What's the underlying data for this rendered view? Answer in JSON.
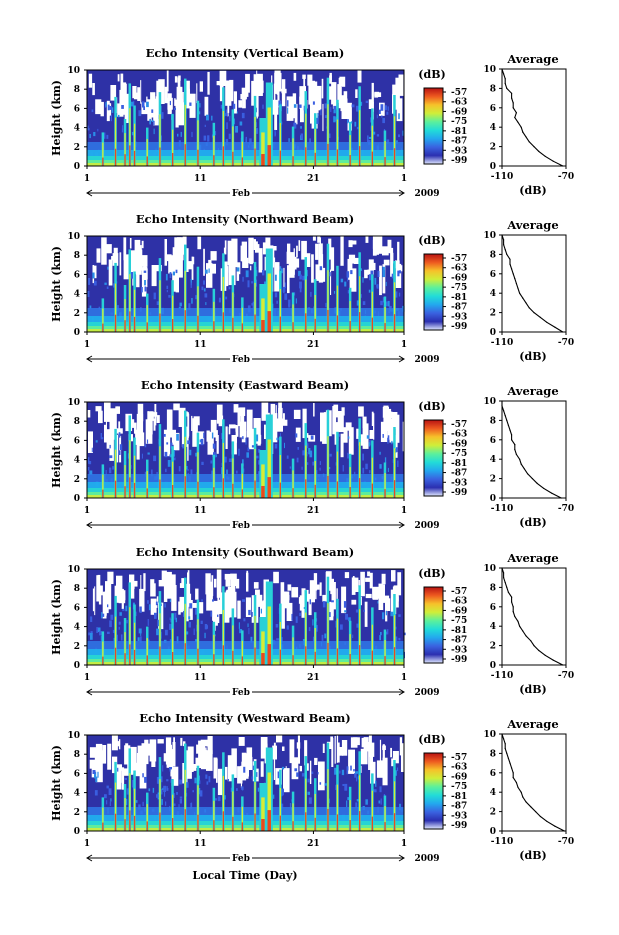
{
  "figure": {
    "xlabel": "Local Time (Day)"
  },
  "colorbar": {
    "unit": "(dB)",
    "ticks": [
      "-57",
      "-63",
      "-69",
      "-75",
      "-81",
      "-87",
      "-93",
      "-99"
    ],
    "colors": [
      "#e0e8ff",
      "#2b2fb0",
      "#3a62e0",
      "#23a8ee",
      "#22dcd8",
      "#5cf09c",
      "#cfee3a",
      "#f6c22a",
      "#ee5a20",
      "#b81212"
    ]
  },
  "chart_data": [
    {
      "type": "heatmap",
      "title": "Echo Intensity (Vertical Beam)",
      "ylabel": "Height (km)",
      "ylim": [
        0,
        10
      ],
      "yticks": [
        "0",
        "2",
        "4",
        "6",
        "8",
        "10"
      ],
      "xticks": [
        "1",
        "11",
        "21",
        "1"
      ],
      "month_label": "Feb",
      "year_label": "2009",
      "colorbar_label": "(dB)",
      "colorbar_range": [
        -99,
        -57
      ],
      "average_profile": {
        "title": "Average",
        "xlabel": "(dB)",
        "xticks": [
          "-110",
          "-70"
        ],
        "xlim": [
          -110,
          -70
        ],
        "heights": [
          0.0,
          0.5,
          1.0,
          1.5,
          2.0,
          2.5,
          3.0,
          3.5,
          4.0,
          4.5,
          5.0,
          5.5,
          6.0,
          6.5,
          7.0,
          7.5,
          8.0,
          8.5,
          9.0,
          9.5,
          10.0
        ],
        "values": [
          -72,
          -78,
          -83,
          -87,
          -90,
          -93,
          -95,
          -97,
          -98,
          -100,
          -102,
          -101,
          -103,
          -103,
          -104,
          -104,
          -107,
          -108,
          -108,
          -109,
          -110
        ]
      }
    },
    {
      "type": "heatmap",
      "title": "Echo Intensity (Northward Beam)",
      "ylabel": "Height (km)",
      "ylim": [
        0,
        10
      ],
      "yticks": [
        "0",
        "2",
        "4",
        "6",
        "8",
        "10"
      ],
      "xticks": [
        "1",
        "11",
        "21",
        "1"
      ],
      "month_label": "Feb",
      "year_label": "2009",
      "colorbar_label": "(dB)",
      "colorbar_range": [
        -99,
        -57
      ],
      "average_profile": {
        "title": "Average",
        "xlabel": "(dB)",
        "xticks": [
          "-110",
          "-70"
        ],
        "xlim": [
          -110,
          -70
        ],
        "heights": [
          0.0,
          0.5,
          1.0,
          1.5,
          2.0,
          2.5,
          3.0,
          3.5,
          4.0,
          4.5,
          5.0,
          5.5,
          6.0,
          6.5,
          7.0,
          7.5,
          8.0,
          8.5,
          9.0,
          9.5,
          10.0
        ],
        "values": [
          -72,
          -77,
          -82,
          -86,
          -90,
          -93,
          -95,
          -97,
          -99,
          -100,
          -101,
          -102,
          -103,
          -104,
          -105,
          -105,
          -107,
          -108,
          -109,
          -109,
          -110
        ]
      }
    },
    {
      "type": "heatmap",
      "title": "Echo Intensity (Eastward Beam)",
      "ylabel": "Height (km)",
      "ylim": [
        0,
        10
      ],
      "yticks": [
        "0",
        "2",
        "4",
        "6",
        "8",
        "10"
      ],
      "xticks": [
        "1",
        "11",
        "21",
        "1"
      ],
      "month_label": "Feb",
      "year_label": "2009",
      "colorbar_label": "(dB)",
      "colorbar_range": [
        -99,
        -57
      ],
      "average_profile": {
        "title": "Average",
        "xlabel": "(dB)",
        "xticks": [
          "-110",
          "-70"
        ],
        "xlim": [
          -110,
          -70
        ],
        "heights": [
          0.0,
          0.5,
          1.0,
          1.5,
          2.0,
          2.5,
          3.0,
          3.5,
          4.0,
          4.5,
          5.0,
          5.5,
          6.0,
          6.5,
          7.0,
          7.5,
          8.0,
          8.5,
          9.0,
          9.5,
          10.0
        ],
        "values": [
          -73,
          -79,
          -84,
          -88,
          -91,
          -94,
          -96,
          -98,
          -99,
          -101,
          -102,
          -102,
          -104,
          -104,
          -105,
          -106,
          -107,
          -108,
          -109,
          -110,
          -110
        ]
      }
    },
    {
      "type": "heatmap",
      "title": "Echo Intensity (Southward Beam)",
      "ylabel": "Height (km)",
      "ylim": [
        0,
        10
      ],
      "yticks": [
        "0",
        "2",
        "4",
        "6",
        "8",
        "10"
      ],
      "xticks": [
        "1",
        "11",
        "21",
        "1"
      ],
      "month_label": "Feb",
      "year_label": "2009",
      "colorbar_label": "(dB)",
      "colorbar_range": [
        -99,
        -57
      ],
      "average_profile": {
        "title": "Average",
        "xlabel": "(dB)",
        "xticks": [
          "-110",
          "-70"
        ],
        "xlim": [
          -110,
          -70
        ],
        "heights": [
          0.0,
          0.5,
          1.0,
          1.5,
          2.0,
          2.5,
          3.0,
          3.5,
          4.0,
          4.5,
          5.0,
          5.5,
          6.0,
          6.5,
          7.0,
          7.5,
          8.0,
          8.5,
          9.0,
          9.5,
          10.0
        ],
        "values": [
          -72,
          -78,
          -83,
          -87,
          -90,
          -92,
          -95,
          -97,
          -99,
          -100,
          -102,
          -103,
          -103,
          -104,
          -104,
          -106,
          -107,
          -108,
          -109,
          -109,
          -110
        ]
      }
    },
    {
      "type": "heatmap",
      "title": "Echo Intensity (Westward Beam)",
      "ylabel": "Height (km)",
      "ylim": [
        0,
        10
      ],
      "yticks": [
        "0",
        "2",
        "4",
        "6",
        "8",
        "10"
      ],
      "xticks": [
        "1",
        "11",
        "21",
        "1"
      ],
      "month_label": "Feb",
      "year_label": "2009",
      "colorbar_label": "(dB)",
      "colorbar_range": [
        -99,
        -57
      ],
      "average_profile": {
        "title": "Average",
        "xlabel": "(dB)",
        "xticks": [
          "-110",
          "-70"
        ],
        "xlim": [
          -110,
          -70
        ],
        "heights": [
          0.0,
          0.5,
          1.0,
          1.5,
          2.0,
          2.5,
          3.0,
          3.5,
          4.0,
          4.5,
          5.0,
          5.5,
          6.0,
          6.5,
          7.0,
          7.5,
          8.0,
          8.5,
          9.0,
          9.5,
          10.0
        ],
        "values": [
          -71,
          -77,
          -82,
          -86,
          -89,
          -92,
          -95,
          -97,
          -98,
          -100,
          -101,
          -103,
          -103,
          -104,
          -105,
          -106,
          -107,
          -108,
          -108,
          -109,
          -110
        ]
      }
    }
  ]
}
